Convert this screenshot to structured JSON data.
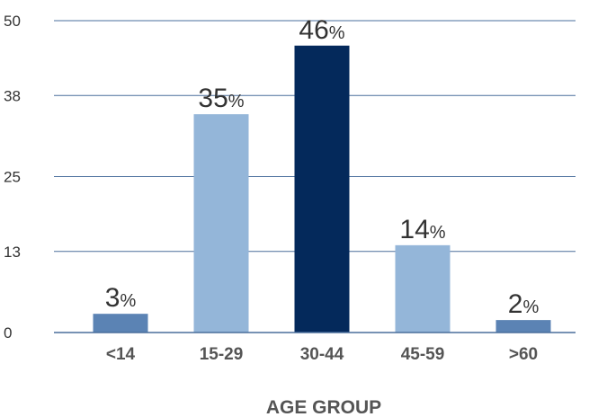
{
  "chart_data": {
    "type": "bar",
    "categories": [
      "<14",
      "15-29",
      "30-44",
      "45-59",
      ">60"
    ],
    "values": [
      3,
      35,
      46,
      14,
      2
    ],
    "value_suffix": "%",
    "colors": [
      "#5b83b4",
      "#94b6d9",
      "#04295b",
      "#94b6d9",
      "#5b83b4"
    ],
    "ylim": [
      0,
      50
    ],
    "yticks": [
      0,
      13,
      25,
      38,
      50
    ],
    "xlabel": "AGE GROUP",
    "ylabel": "",
    "title": "",
    "grid": true
  }
}
